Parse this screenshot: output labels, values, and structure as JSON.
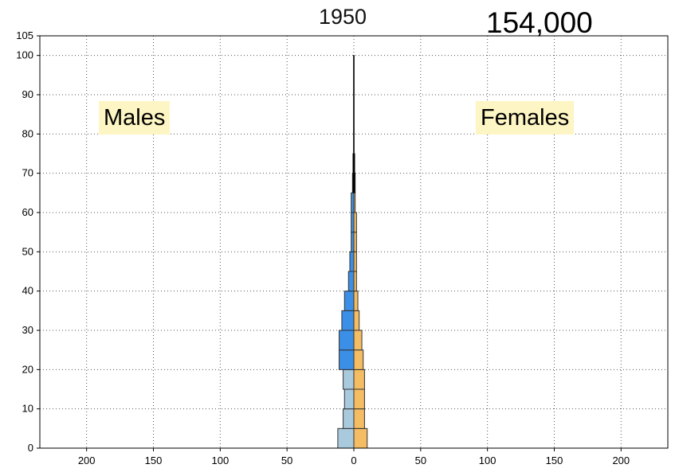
{
  "header": {
    "year": "1950",
    "total": "154,000"
  },
  "legend": {
    "males": "Males",
    "females": "Females"
  },
  "colors": {
    "male_light": "#a9c9dc",
    "male_dark": "#3b8fe6",
    "female_light": "#f7d7a3",
    "female_dark": "#f4bd63",
    "edge": "#333333"
  },
  "chart_data": {
    "type": "bar",
    "orientation": "horizontal-population-pyramid",
    "xlim": [
      -235,
      235
    ],
    "ylim": [
      0,
      105
    ],
    "x_ticks": [
      -200,
      -150,
      -100,
      -50,
      0,
      50,
      100,
      150,
      200
    ],
    "x_tick_labels": [
      "200",
      "150",
      "100",
      "50",
      "0",
      "50",
      "100",
      "150",
      "200"
    ],
    "y_ticks": [
      0,
      10,
      20,
      30,
      40,
      50,
      60,
      70,
      80,
      90,
      100,
      105
    ],
    "y_tick_labels": [
      "0",
      "10",
      "20",
      "30",
      "40",
      "50",
      "60",
      "70",
      "80",
      "90",
      "100",
      "105"
    ],
    "grid": true,
    "age_groups": [
      {
        "age": 0,
        "males": 12,
        "females": 10,
        "males_shade": "light",
        "females_shade": "dark"
      },
      {
        "age": 5,
        "males": 8,
        "females": 8,
        "males_shade": "light",
        "females_shade": "dark"
      },
      {
        "age": 10,
        "males": 7,
        "females": 8,
        "males_shade": "light",
        "females_shade": "dark"
      },
      {
        "age": 15,
        "males": 8,
        "females": 8,
        "males_shade": "light",
        "females_shade": "dark"
      },
      {
        "age": 20,
        "males": 11,
        "females": 7,
        "males_shade": "dark",
        "females_shade": "dark"
      },
      {
        "age": 25,
        "males": 11,
        "females": 6,
        "males_shade": "dark",
        "females_shade": "dark"
      },
      {
        "age": 30,
        "males": 9,
        "females": 4,
        "males_shade": "dark",
        "females_shade": "dark"
      },
      {
        "age": 35,
        "males": 7,
        "females": 3,
        "males_shade": "dark",
        "females_shade": "dark"
      },
      {
        "age": 40,
        "males": 4,
        "females": 2,
        "males_shade": "dark",
        "females_shade": "dark"
      },
      {
        "age": 45,
        "males": 3,
        "females": 2,
        "males_shade": "dark",
        "females_shade": "dark"
      },
      {
        "age": 50,
        "males": 2,
        "females": 2,
        "males_shade": "dark",
        "females_shade": "dark"
      },
      {
        "age": 55,
        "males": 2,
        "females": 2,
        "males_shade": "dark",
        "females_shade": "dark"
      },
      {
        "age": 60,
        "males": 2,
        "females": 1,
        "males_shade": "dark",
        "females_shade": "dark"
      },
      {
        "age": 65,
        "males": 1,
        "females": 1,
        "males_shade": "dark",
        "females_shade": "dark"
      },
      {
        "age": 70,
        "males": 0.6,
        "females": 0.6,
        "males_shade": "dark",
        "females_shade": "dark"
      },
      {
        "age": 75,
        "males": 0.3,
        "females": 0.3,
        "males_shade": "dark",
        "females_shade": "dark"
      },
      {
        "age": 80,
        "males": 0.3,
        "females": 0.3,
        "males_shade": "dark",
        "females_shade": "dark"
      },
      {
        "age": 85,
        "males": 0.3,
        "females": 0.3,
        "males_shade": "dark",
        "females_shade": "dark"
      },
      {
        "age": 90,
        "males": 0.3,
        "females": 0.3,
        "males_shade": "dark",
        "females_shade": "dark"
      },
      {
        "age": 95,
        "males": 0.3,
        "females": 0.3,
        "males_shade": "dark",
        "females_shade": "dark"
      }
    ]
  }
}
